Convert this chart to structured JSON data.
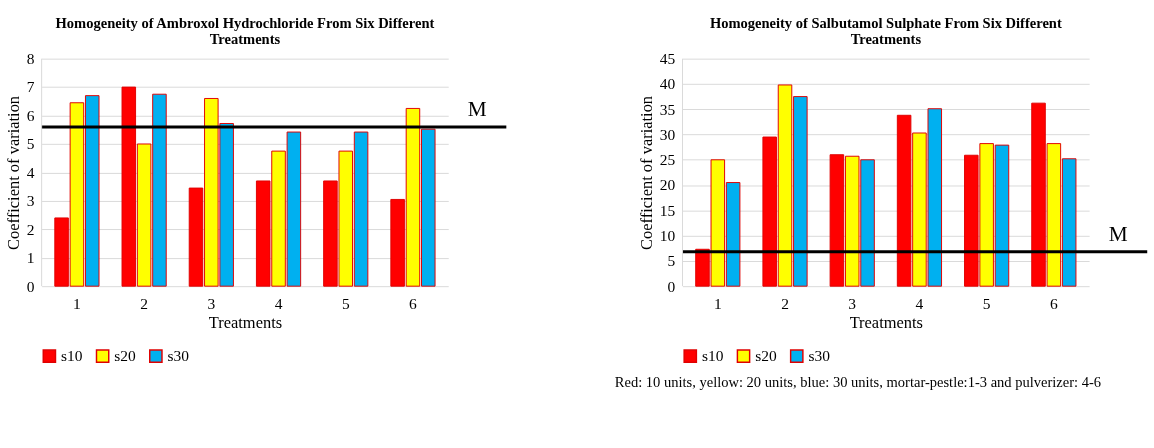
{
  "chart_data": [
    {
      "type": "bar",
      "title": [
        "Homogeneity of Ambroxol Hydrochloride From Six Different",
        "Treatments"
      ],
      "xlabel": "Treatments",
      "ylabel": "Coefficient of variation",
      "categories": [
        "1",
        "2",
        "3",
        "4",
        "5",
        "6"
      ],
      "series": [
        {
          "name": "s10",
          "color": "#ff0000",
          "values": [
            2.4,
            7.0,
            3.45,
            3.7,
            3.7,
            3.05
          ]
        },
        {
          "name": "s20",
          "color": "#ffff00",
          "values": [
            6.45,
            5.0,
            6.6,
            4.75,
            4.75,
            6.25
          ]
        },
        {
          "name": "s30",
          "color": "#00b0f0",
          "values": [
            6.7,
            6.75,
            5.72,
            5.42,
            5.42,
            5.52
          ]
        }
      ],
      "ylim": [
        0,
        8
      ],
      "yticks": [
        0,
        1,
        2,
        3,
        4,
        5,
        6,
        7,
        8
      ],
      "grid": "y",
      "legend": "bottom",
      "ref_lines": [
        {
          "axis": "y",
          "value": 5.6,
          "label": "M",
          "color": "#000000"
        }
      ]
    },
    {
      "type": "bar",
      "title": [
        "Homogeneity of Salbutamol Sulphate From Six Different",
        "Treatments"
      ],
      "xlabel": "Treatments",
      "ylabel": "Coefficient of variation",
      "categories": [
        "1",
        "2",
        "3",
        "4",
        "5",
        "6"
      ],
      "series": [
        {
          "name": "s10",
          "color": "#ff0000",
          "values": [
            7.3,
            29.5,
            26.0,
            33.8,
            25.9,
            36.2
          ]
        },
        {
          "name": "s20",
          "color": "#ffff00",
          "values": [
            25.0,
            39.8,
            25.7,
            30.3,
            28.2,
            28.2
          ]
        },
        {
          "name": "s30",
          "color": "#00b0f0",
          "values": [
            20.5,
            37.5,
            25.0,
            35.1,
            27.9,
            25.2
          ]
        }
      ],
      "ylim": [
        0,
        45
      ],
      "yticks": [
        0,
        5,
        10,
        15,
        20,
        25,
        30,
        35,
        40,
        45
      ],
      "grid": "y",
      "legend": "bottom",
      "ref_lines": [
        {
          "axis": "y",
          "value": 6.8,
          "label": "M",
          "color": "#000000"
        }
      ],
      "annotations": [
        "Red: 10 units, yellow: 20 units, blue: 30 units, mortar-pestle:1-3 and pulverizer: 4-6"
      ]
    }
  ]
}
